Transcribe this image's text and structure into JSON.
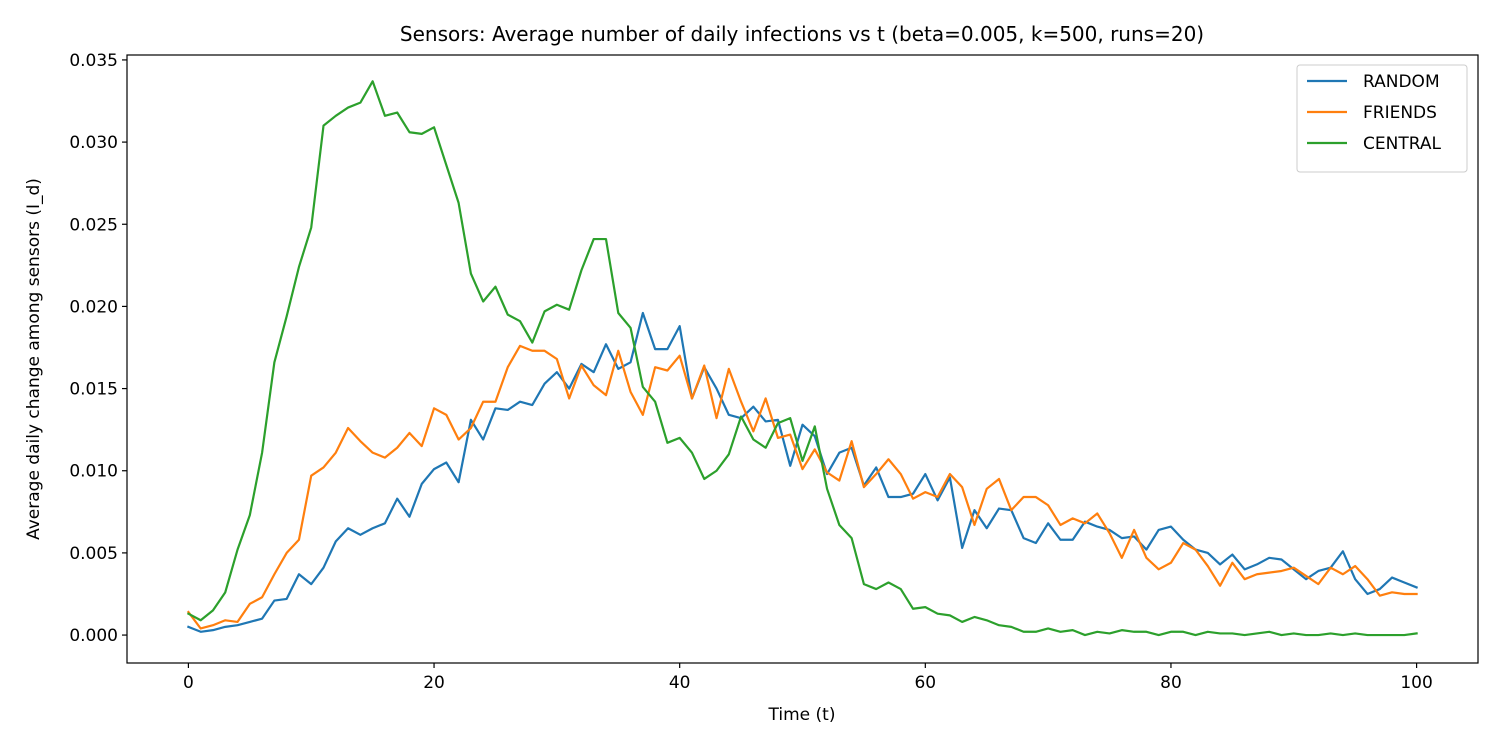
{
  "chart_data": {
    "type": "line",
    "title": "Sensors: Average number of daily infections vs t (beta=0.005, k=500, runs=20)",
    "xlabel": "Time (t)",
    "ylabel": "Average daily change among sensors (I_d)",
    "xlim": [
      -5,
      105
    ],
    "ylim": [
      -0.0017,
      0.0353
    ],
    "xticks": [
      0,
      20,
      40,
      60,
      80,
      100
    ],
    "xtick_labels": [
      "0",
      "20",
      "40",
      "60",
      "80",
      "100"
    ],
    "yticks": [
      0.0,
      0.005,
      0.01,
      0.015,
      0.02,
      0.025,
      0.03,
      0.035
    ],
    "ytick_labels": [
      "0.000",
      "0.005",
      "0.010",
      "0.015",
      "0.020",
      "0.025",
      "0.030",
      "0.035"
    ],
    "grid": false,
    "legend_position": "top-right",
    "series": [
      {
        "name": "RANDOM",
        "color": "#1f77b4",
        "values": [
          0.0005,
          0.0002,
          0.0003,
          0.0005,
          0.0006,
          0.0008,
          0.001,
          0.0021,
          0.0022,
          0.0037,
          0.0031,
          0.0041,
          0.0057,
          0.0065,
          0.0061,
          0.0065,
          0.0068,
          0.0083,
          0.0072,
          0.0092,
          0.0101,
          0.0105,
          0.0093,
          0.0131,
          0.0119,
          0.0138,
          0.0137,
          0.0142,
          0.014,
          0.0153,
          0.016,
          0.015,
          0.0165,
          0.016,
          0.0177,
          0.0162,
          0.0166,
          0.0196,
          0.0174,
          0.0174,
          0.0188,
          0.0144,
          0.0163,
          0.015,
          0.0134,
          0.0132,
          0.0139,
          0.013,
          0.0131,
          0.0103,
          0.0128,
          0.0121,
          0.0098,
          0.0111,
          0.0114,
          0.0091,
          0.0102,
          0.0084,
          0.0084,
          0.0086,
          0.0098,
          0.0082,
          0.0096,
          0.0053,
          0.0076,
          0.0065,
          0.0077,
          0.0076,
          0.0059,
          0.0056,
          0.0068,
          0.0058,
          0.0058,
          0.0069,
          0.0066,
          0.0064,
          0.0059,
          0.006,
          0.0052,
          0.0064,
          0.0066,
          0.0058,
          0.0052,
          0.005,
          0.0043,
          0.0049,
          0.004,
          0.0043,
          0.0047,
          0.0046,
          0.004,
          0.0034,
          0.0039,
          0.0041,
          0.0051,
          0.0034,
          0.0025,
          0.0028,
          0.0035,
          0.0032,
          0.0029
        ]
      },
      {
        "name": "FRIENDS",
        "color": "#ff7f0e",
        "values": [
          0.0014,
          0.0004,
          0.0006,
          0.0009,
          0.0008,
          0.0019,
          0.0023,
          0.0037,
          0.005,
          0.0058,
          0.0097,
          0.0102,
          0.0111,
          0.0126,
          0.0118,
          0.0111,
          0.0108,
          0.0114,
          0.0123,
          0.0115,
          0.0138,
          0.0134,
          0.0119,
          0.0126,
          0.0142,
          0.0142,
          0.0163,
          0.0176,
          0.0173,
          0.0173,
          0.0168,
          0.0144,
          0.0164,
          0.0152,
          0.0146,
          0.0173,
          0.0148,
          0.0134,
          0.0163,
          0.0161,
          0.017,
          0.0144,
          0.0164,
          0.0132,
          0.0162,
          0.0142,
          0.0124,
          0.0144,
          0.012,
          0.0122,
          0.0101,
          0.0113,
          0.0099,
          0.0094,
          0.0118,
          0.009,
          0.0098,
          0.0107,
          0.0098,
          0.0083,
          0.0087,
          0.0084,
          0.0098,
          0.009,
          0.0067,
          0.0089,
          0.0095,
          0.0076,
          0.0084,
          0.0084,
          0.0079,
          0.0067,
          0.0071,
          0.0068,
          0.0074,
          0.0062,
          0.0047,
          0.0064,
          0.0047,
          0.004,
          0.0044,
          0.0056,
          0.0052,
          0.0042,
          0.003,
          0.0044,
          0.0034,
          0.0037,
          0.0038,
          0.0039,
          0.0041,
          0.0036,
          0.0031,
          0.0041,
          0.0037,
          0.0042,
          0.0034,
          0.0024,
          0.0026,
          0.0025,
          0.0025
        ]
      },
      {
        "name": "CENTRAL",
        "color": "#2ca02c",
        "values": [
          0.0013,
          0.0009,
          0.0015,
          0.0026,
          0.0052,
          0.0073,
          0.0111,
          0.0166,
          0.0194,
          0.0224,
          0.0248,
          0.031,
          0.0316,
          0.0321,
          0.0324,
          0.0337,
          0.0316,
          0.0318,
          0.0306,
          0.0305,
          0.0309,
          0.0286,
          0.0263,
          0.022,
          0.0203,
          0.0212,
          0.0195,
          0.0191,
          0.0178,
          0.0197,
          0.0201,
          0.0198,
          0.0222,
          0.0241,
          0.0241,
          0.0196,
          0.0187,
          0.0151,
          0.0142,
          0.0117,
          0.012,
          0.0111,
          0.0095,
          0.01,
          0.011,
          0.0133,
          0.0119,
          0.0114,
          0.0129,
          0.0132,
          0.0106,
          0.0127,
          0.0089,
          0.0067,
          0.0059,
          0.0031,
          0.0028,
          0.0032,
          0.0028,
          0.0016,
          0.0017,
          0.0013,
          0.0012,
          0.0008,
          0.0011,
          0.0009,
          0.0006,
          0.0005,
          0.0002,
          0.0002,
          0.0004,
          0.0002,
          0.0003,
          0.0,
          0.0002,
          0.0001,
          0.0003,
          0.0002,
          0.0002,
          0.0,
          0.0002,
          0.0002,
          0.0,
          0.0002,
          0.0001,
          0.0001,
          0.0,
          0.0001,
          0.0002,
          0.0,
          0.0001,
          0.0,
          0.0,
          0.0001,
          0.0,
          0.0001,
          0.0,
          0.0,
          0.0,
          0.0,
          0.0001
        ]
      }
    ]
  }
}
